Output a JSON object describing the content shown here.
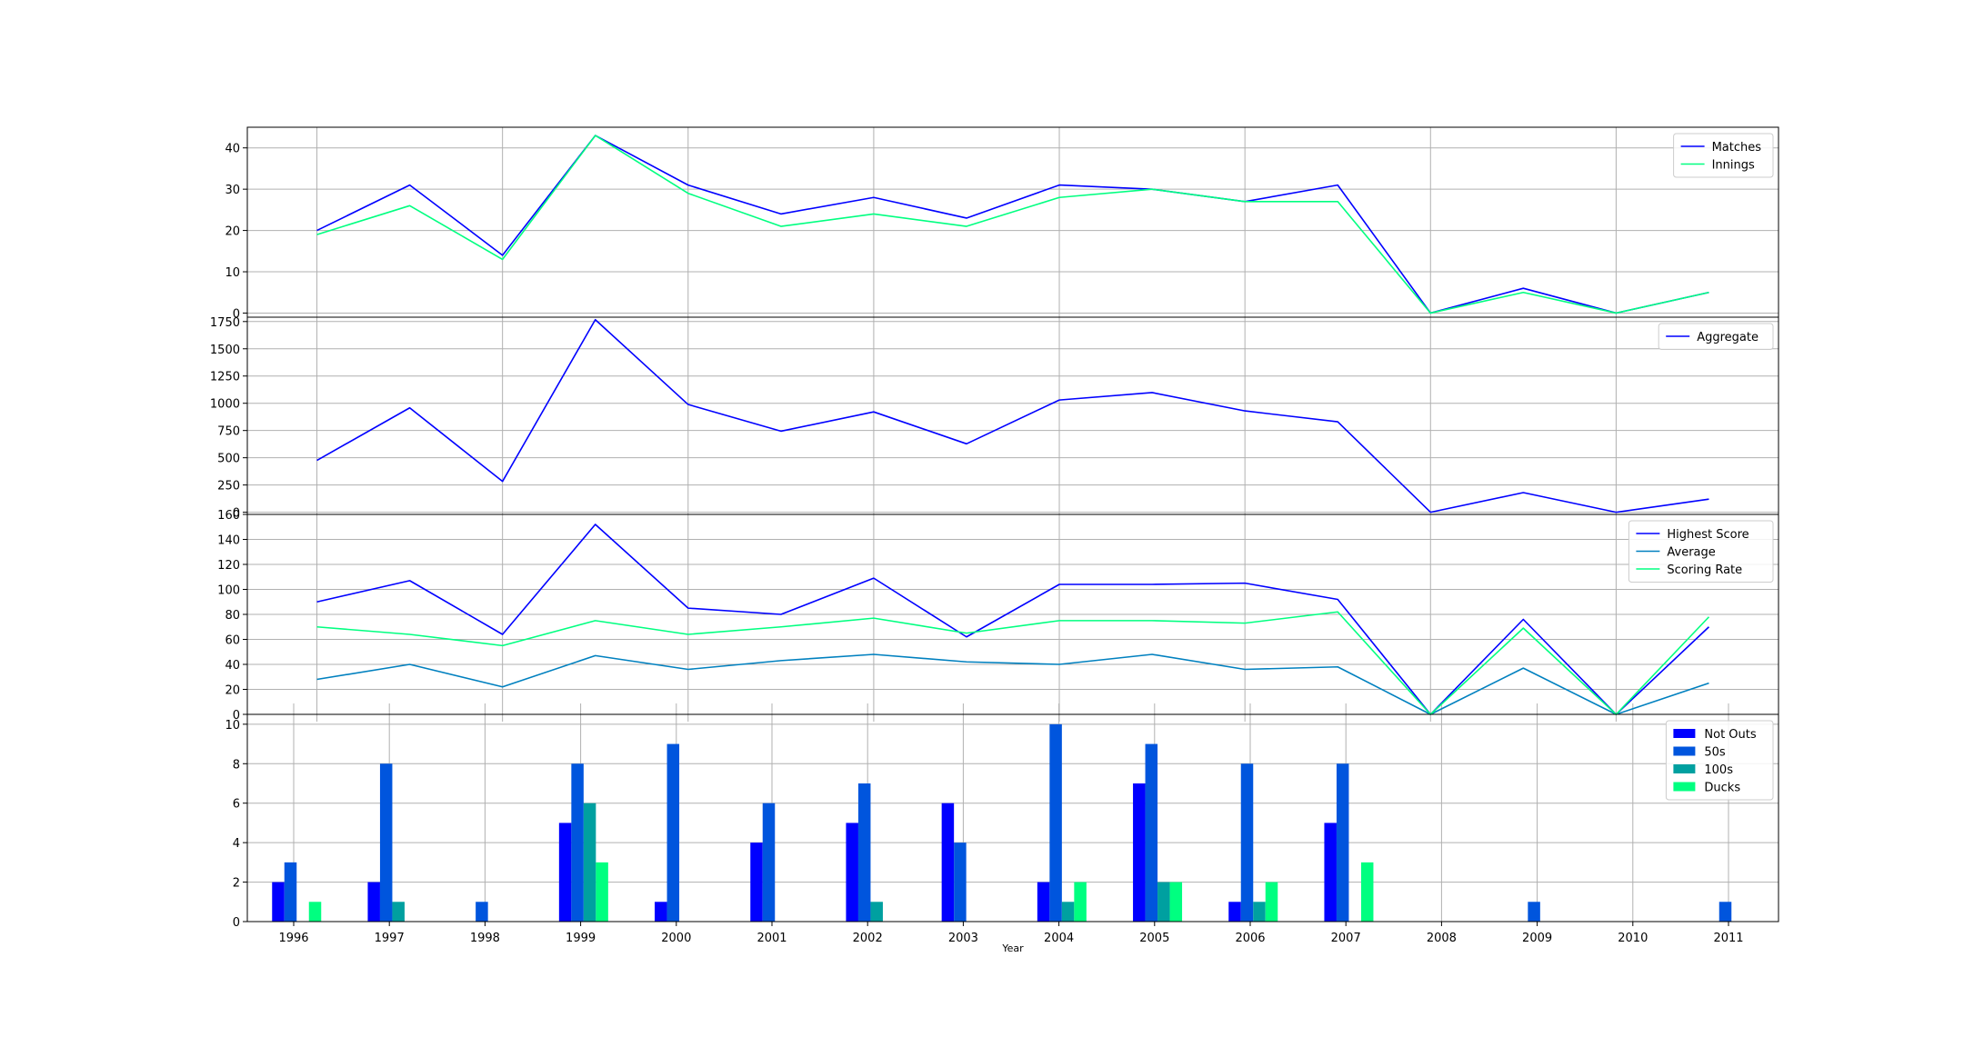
{
  "chart_data": [
    {
      "type": "line",
      "x": [
        1996,
        1997,
        1998,
        1999,
        2000,
        2001,
        2002,
        2003,
        2004,
        2005,
        2006,
        2007,
        2008,
        2009,
        2010,
        2011
      ],
      "ylim": [
        -1,
        45
      ],
      "yticks": [
        0,
        10,
        20,
        30,
        40
      ],
      "grid": true,
      "legend": "top-right",
      "series": [
        {
          "name": "Matches",
          "color": "#0000ff",
          "values": [
            20,
            31,
            14,
            43,
            31,
            24,
            28,
            23,
            31,
            30,
            27,
            31,
            0,
            6,
            0,
            5
          ]
        },
        {
          "name": "Innings",
          "color": "#00ff80",
          "values": [
            19,
            26,
            13,
            43,
            29,
            21,
            24,
            21,
            28,
            30,
            27,
            27,
            0,
            5,
            0,
            5
          ]
        }
      ]
    },
    {
      "type": "line",
      "x": [
        1996,
        1997,
        1998,
        1999,
        2000,
        2001,
        2002,
        2003,
        2004,
        2005,
        2006,
        2007,
        2008,
        2009,
        2010,
        2011
      ],
      "ylim": [
        -20,
        1790
      ],
      "yticks": [
        0,
        250,
        500,
        750,
        1000,
        1250,
        1500,
        1750
      ],
      "grid": true,
      "legend": "top-right",
      "series": [
        {
          "name": "Aggregate",
          "color": "#0000ff",
          "values": [
            476,
            958,
            283,
            1767,
            989,
            744,
            921,
            628,
            1030,
            1098,
            930,
            830,
            0,
            180,
            0,
            120
          ]
        }
      ]
    },
    {
      "type": "line",
      "x": [
        1996,
        1997,
        1998,
        1999,
        2000,
        2001,
        2002,
        2003,
        2004,
        2005,
        2006,
        2007,
        2008,
        2009,
        2010,
        2011
      ],
      "ylim": [
        0,
        160
      ],
      "yticks": [
        0,
        20,
        40,
        60,
        80,
        100,
        120,
        140,
        160
      ],
      "grid": true,
      "legend": "top-right",
      "series": [
        {
          "name": "Highest Score",
          "color": "#0000ff",
          "values": [
            90,
            107,
            64,
            152,
            85,
            80,
            109,
            62,
            104,
            104,
            105,
            92,
            0,
            76,
            0,
            70
          ]
        },
        {
          "name": "Average",
          "color": "#0080bf",
          "values": [
            28,
            40,
            22,
            47,
            36,
            43,
            48,
            42,
            40,
            48,
            36,
            38,
            0,
            37,
            0,
            25
          ]
        },
        {
          "name": "Scoring Rate",
          "color": "#00ff80",
          "values": [
            70,
            64,
            55,
            75,
            64,
            70,
            77,
            65,
            75,
            75,
            73,
            82,
            0,
            69,
            0,
            78
          ]
        }
      ]
    },
    {
      "type": "bar",
      "categories": [
        "1996",
        "1997",
        "1998",
        "1999",
        "2000",
        "2001",
        "2002",
        "2003",
        "2004",
        "2005",
        "2006",
        "2007",
        "2008",
        "2009",
        "2010",
        "2011"
      ],
      "xlabel": "Year",
      "ylim": [
        0,
        10.5
      ],
      "yticks": [
        0,
        2,
        4,
        6,
        8,
        10
      ],
      "grid": true,
      "legend": "top-right",
      "series": [
        {
          "name": "Not Outs",
          "color": "#0000ff",
          "values": [
            2,
            2,
            0,
            5,
            1,
            4,
            5,
            6,
            2,
            7,
            1,
            5,
            0,
            0,
            0,
            0
          ]
        },
        {
          "name": "50s",
          "color": "#0055dd",
          "values": [
            3,
            8,
            1,
            8,
            9,
            6,
            7,
            4,
            10,
            9,
            8,
            8,
            0,
            1,
            0,
            1
          ]
        },
        {
          "name": "100s",
          "color": "#00a0a0",
          "values": [
            0,
            1,
            0,
            6,
            0,
            0,
            1,
            0,
            1,
            2,
            1,
            0,
            0,
            0,
            0,
            0
          ]
        },
        {
          "name": "Ducks",
          "color": "#00ff80",
          "values": [
            1,
            0,
            0,
            3,
            0,
            0,
            0,
            0,
            2,
            2,
            2,
            3,
            0,
            0,
            0,
            0
          ]
        }
      ]
    }
  ]
}
